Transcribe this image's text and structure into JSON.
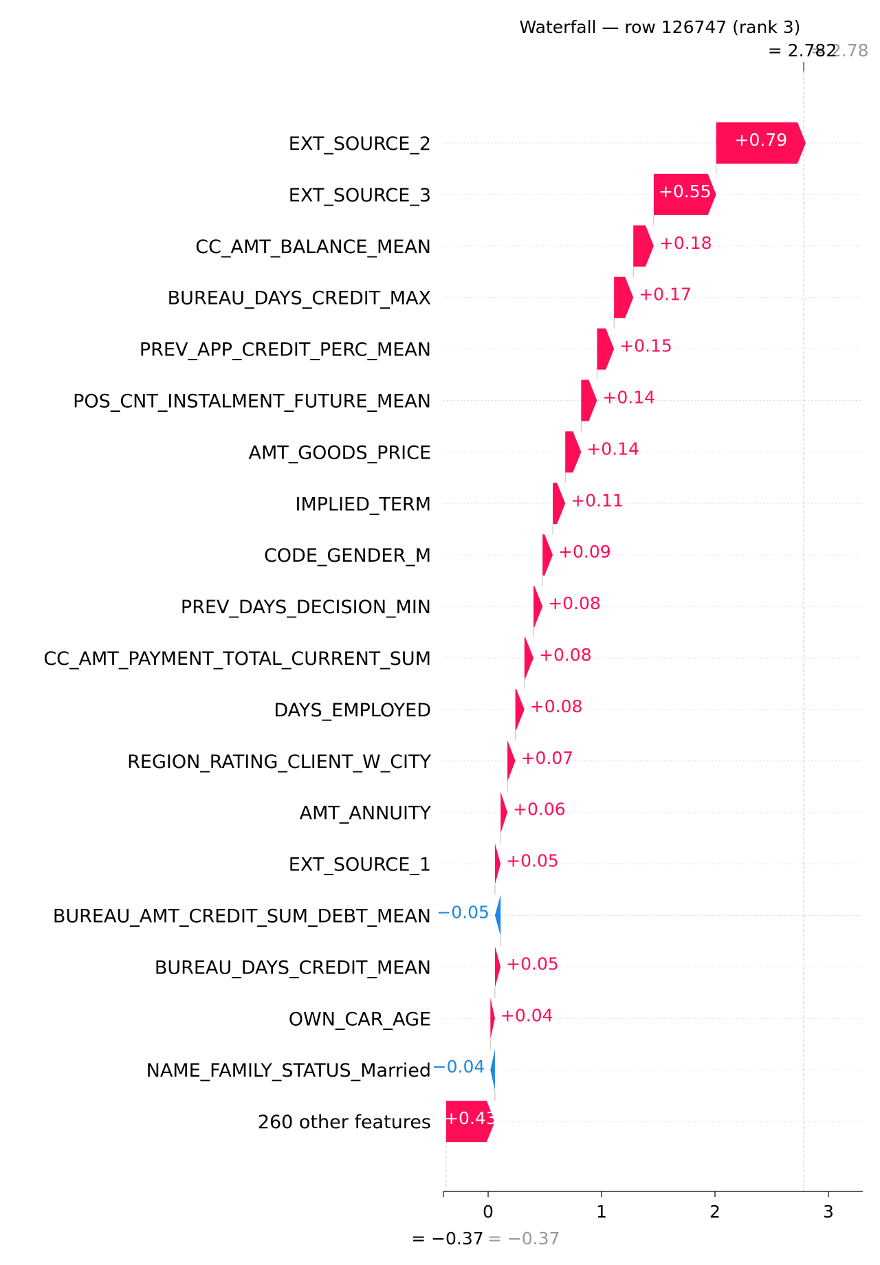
{
  "chart_data": {
    "type": "waterfall",
    "title": "Waterfall — row 126747 (rank 3)",
    "base_value": -0.37,
    "final_value": 2.782,
    "fx_label": "= 2.782",
    "fx_label_ghost": "= 2.78",
    "base_label": "= −0.37",
    "base_label_ghost": "= −0.37",
    "xlim": [
      -0.38,
      3.3
    ],
    "xticks": [
      0,
      1,
      2,
      3
    ],
    "xtick_labels": [
      "0",
      "1",
      "2",
      "3"
    ],
    "colors": {
      "positive": "#ff0d57",
      "negative": "#1e88e5",
      "grid": "#cccccc",
      "ghost_text": "#999999"
    },
    "features": [
      {
        "name": "EXT_SOURCE_2",
        "value": 0.79,
        "label": "+0.79"
      },
      {
        "name": "EXT_SOURCE_3",
        "value": 0.55,
        "label": "+0.55"
      },
      {
        "name": "CC_AMT_BALANCE_MEAN",
        "value": 0.18,
        "label": "+0.18"
      },
      {
        "name": "BUREAU_DAYS_CREDIT_MAX",
        "value": 0.17,
        "label": "+0.17"
      },
      {
        "name": "PREV_APP_CREDIT_PERC_MEAN",
        "value": 0.15,
        "label": "+0.15"
      },
      {
        "name": "POS_CNT_INSTALMENT_FUTURE_MEAN",
        "value": 0.14,
        "label": "+0.14"
      },
      {
        "name": "AMT_GOODS_PRICE",
        "value": 0.14,
        "label": "+0.14"
      },
      {
        "name": "IMPLIED_TERM",
        "value": 0.11,
        "label": "+0.11"
      },
      {
        "name": "CODE_GENDER_M",
        "value": 0.09,
        "label": "+0.09"
      },
      {
        "name": "PREV_DAYS_DECISION_MIN",
        "value": 0.08,
        "label": "+0.08"
      },
      {
        "name": "CC_AMT_PAYMENT_TOTAL_CURRENT_SUM",
        "value": 0.08,
        "label": "+0.08"
      },
      {
        "name": "DAYS_EMPLOYED",
        "value": 0.08,
        "label": "+0.08"
      },
      {
        "name": "REGION_RATING_CLIENT_W_CITY",
        "value": 0.07,
        "label": "+0.07"
      },
      {
        "name": "AMT_ANNUITY",
        "value": 0.06,
        "label": "+0.06"
      },
      {
        "name": "EXT_SOURCE_1",
        "value": 0.05,
        "label": "+0.05"
      },
      {
        "name": "BUREAU_AMT_CREDIT_SUM_DEBT_MEAN",
        "value": -0.05,
        "label": "−0.05"
      },
      {
        "name": "BUREAU_DAYS_CREDIT_MEAN",
        "value": 0.05,
        "label": "+0.05"
      },
      {
        "name": "OWN_CAR_AGE",
        "value": 0.04,
        "label": "+0.04"
      },
      {
        "name": "NAME_FAMILY_STATUS_Married",
        "value": -0.04,
        "label": "−0.04"
      },
      {
        "name": "260 other features",
        "value": 0.43,
        "label": "+0.43"
      }
    ]
  }
}
